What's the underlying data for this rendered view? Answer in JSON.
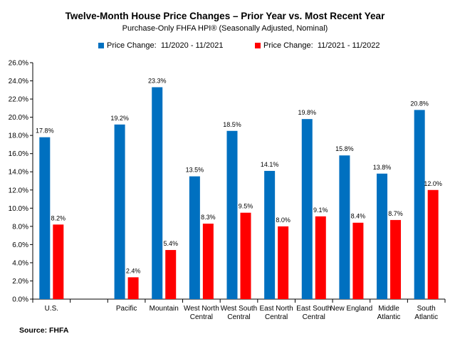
{
  "chart_data": {
    "type": "bar",
    "title": "Twelve-Month House Price Changes – Prior Year vs. Most Recent Year",
    "subtitle": "Purchase-Only FHFA HPI® (Seasonally Adjusted, Nominal)",
    "categories": [
      [
        "U.S."
      ],
      [
        ""
      ],
      [
        "Pacific"
      ],
      [
        "Mountain"
      ],
      [
        "West North",
        "Central"
      ],
      [
        "West South",
        "Central"
      ],
      [
        "East North",
        "Central"
      ],
      [
        "East South",
        "Central"
      ],
      [
        "New England"
      ],
      [
        "Middle",
        "Atlantic"
      ],
      [
        "South",
        "Atlantic"
      ]
    ],
    "series": [
      {
        "name": "Price Change:  11/2020 - 11/2021",
        "color": "#0070C0",
        "values": [
          17.8,
          null,
          19.2,
          23.3,
          13.5,
          18.5,
          14.1,
          19.8,
          15.8,
          13.8,
          20.8
        ],
        "labels": [
          "17.8%",
          "",
          "19.2%",
          "23.3%",
          "13.5%",
          "18.5%",
          "14.1%",
          "19.8%",
          "15.8%",
          "13.8%",
          "20.8%"
        ]
      },
      {
        "name": "Price Change:  11/2021 - 11/2022",
        "color": "#FF0000",
        "values": [
          8.2,
          null,
          2.4,
          5.4,
          8.3,
          9.5,
          8.0,
          9.1,
          8.4,
          8.7,
          12.0
        ],
        "labels": [
          "8.2%",
          "",
          "2.4%",
          "5.4%",
          "8.3%",
          "9.5%",
          "8.0%",
          "9.1%",
          "8.4%",
          "8.7%",
          "12.0%"
        ]
      }
    ],
    "ylim": [
      0,
      26
    ],
    "yticks": [
      0,
      2,
      4,
      6,
      8,
      10,
      12,
      14,
      16,
      18,
      20,
      22,
      24,
      26
    ],
    "ytick_labels": [
      "0.0%",
      "2.0%",
      "4.0%",
      "6.0%",
      "8.0%",
      "10.0%",
      "12.0%",
      "14.0%",
      "16.0%",
      "18.0%",
      "20.0%",
      "22.0%",
      "24.0%",
      "26.0%"
    ],
    "grid": false,
    "legend_position": "top"
  },
  "source": "Source: FHFA"
}
